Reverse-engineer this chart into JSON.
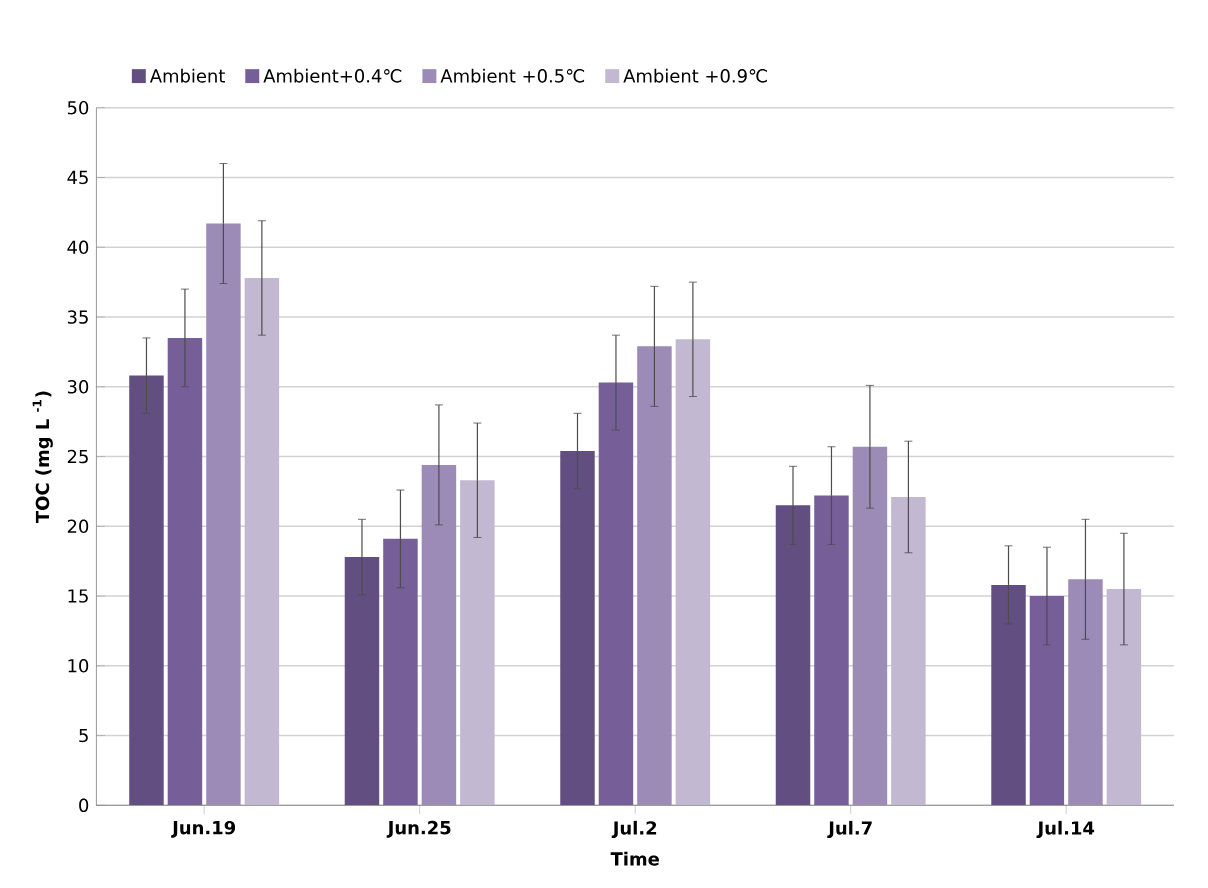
{
  "chart_data": {
    "type": "bar",
    "xlabel": "Time",
    "ylabel": "TOC  (mg L $^{-1}$)",
    "categories": [
      "Jun.19",
      "Jun.25",
      "Jul.2",
      "Jul.7",
      "Jul.14"
    ],
    "series": [
      {
        "name": "Ambient",
        "color": "#634e82",
        "values": [
          30.8,
          17.8,
          25.4,
          21.5,
          15.8
        ],
        "errors": [
          2.7,
          2.7,
          2.7,
          2.8,
          2.8
        ]
      },
      {
        "name": "Ambient+0.4℃",
        "color": "#765e99",
        "values": [
          33.5,
          19.1,
          30.3,
          22.2,
          15.0
        ],
        "errors": [
          3.5,
          3.5,
          3.4,
          3.5,
          3.5
        ]
      },
      {
        "name": "Ambient  +0.5℃",
        "color": "#9c8ab7",
        "values": [
          41.7,
          24.4,
          32.9,
          25.7,
          16.2
        ],
        "errors": [
          4.3,
          4.3,
          4.3,
          4.4,
          4.3
        ]
      },
      {
        "name": "Ambient  +0.9℃",
        "color": "#c3b8d2",
        "values": [
          37.8,
          23.3,
          33.4,
          22.1,
          15.5
        ],
        "errors": [
          4.1,
          4.1,
          4.1,
          4.0,
          4.0
        ]
      }
    ],
    "ylim": [
      0,
      50
    ],
    "yticks": [
      0,
      5,
      10,
      15,
      20,
      25,
      30,
      35,
      40,
      45,
      50
    ],
    "grid": "y",
    "legend": "top"
  }
}
